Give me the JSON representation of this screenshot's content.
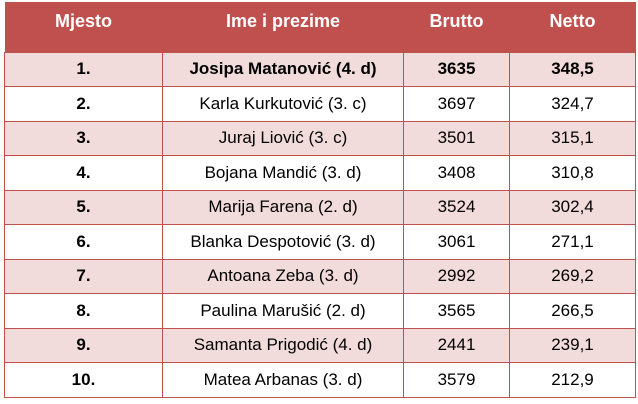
{
  "table": {
    "headers": {
      "place": "Mjesto",
      "name": "Ime i prezime",
      "brutto": "Brutto",
      "netto": "Netto"
    },
    "rows": [
      {
        "place": "1.",
        "name": "Josipa Matanović (4. d)",
        "brutto": "3635",
        "netto": "348,5"
      },
      {
        "place": "2.",
        "name": "Karla Kurkutović (3. c)",
        "brutto": "3697",
        "netto": "324,7"
      },
      {
        "place": "3.",
        "name": "Juraj Liović (3. c)",
        "brutto": "3501",
        "netto": "315,1"
      },
      {
        "place": "4.",
        "name": "Bojana Mandić (3. d)",
        "brutto": "3408",
        "netto": "310,8"
      },
      {
        "place": "5.",
        "name": "Marija Farena (2. d)",
        "brutto": "3524",
        "netto": "302,4"
      },
      {
        "place": "6.",
        "name": "Blanka Despotović (3. d)",
        "brutto": "3061",
        "netto": "271,1"
      },
      {
        "place": "7.",
        "name": "Antoana Zeba (3. d)",
        "brutto": "2992",
        "netto": "269,2"
      },
      {
        "place": "8.",
        "name": "Paulina Marušić (2. d)",
        "brutto": "3565",
        "netto": "266,5"
      },
      {
        "place": "9.",
        "name": "Samanta Prigodić (4. d)",
        "brutto": "2441",
        "netto": "239,1"
      },
      {
        "place": "10.",
        "name": "Matea Arbanas (3. d)",
        "brutto": "3579",
        "netto": "212,9"
      }
    ]
  },
  "colors": {
    "header_background": "#c0504d",
    "header_text": "#ffffff",
    "band_background": "#f2dcdb",
    "border": "#c0504d"
  }
}
